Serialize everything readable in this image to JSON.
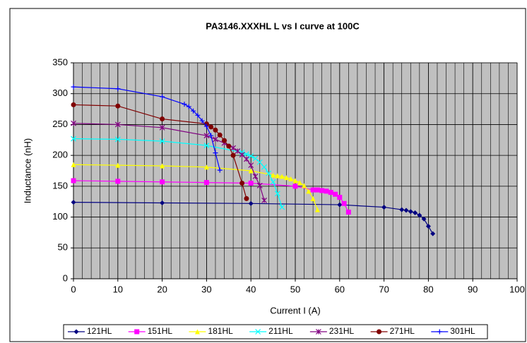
{
  "chart_data": {
    "type": "line",
    "title": "PA3146.XXXHL L vs I curve at 100C",
    "x_label": "Current I (A)",
    "y_label": "Inductance (nH)",
    "xlim": [
      0,
      100
    ],
    "xticks": [
      0,
      10,
      20,
      30,
      40,
      50,
      60,
      70,
      80,
      90,
      100
    ],
    "ylim": [
      0,
      350
    ],
    "yticks": [
      0,
      50,
      100,
      150,
      200,
      250,
      300,
      350
    ],
    "grid": true,
    "minor_grid_step": 2,
    "legend": "bottom",
    "series": [
      {
        "name": "121HL",
        "color": "#000080",
        "marker": "diamond",
        "x": [
          0,
          20,
          40,
          60,
          70,
          74,
          75,
          76,
          77,
          78,
          79,
          80,
          81
        ],
        "values": [
          124,
          123,
          122,
          120,
          116,
          112,
          111,
          109,
          107,
          103,
          97,
          85,
          73
        ]
      },
      {
        "name": "151HL",
        "color": "#ff00ff",
        "marker": "square",
        "x": [
          0,
          10,
          20,
          30,
          40,
          50,
          54,
          55,
          56,
          57,
          58,
          59,
          60,
          61,
          62
        ],
        "values": [
          159,
          158,
          157,
          156,
          155,
          150,
          144,
          144,
          143,
          142,
          140,
          137,
          132,
          122,
          108
        ]
      },
      {
        "name": "181HL",
        "color": "#ffff00",
        "marker": "triangle",
        "x": [
          0,
          10,
          20,
          30,
          40,
          45,
          46,
          47,
          48,
          49,
          50,
          51,
          52,
          53,
          54,
          55
        ],
        "values": [
          185,
          184,
          183,
          181,
          175,
          168,
          167,
          166,
          164,
          162,
          159,
          156,
          151,
          142,
          130,
          112
        ]
      },
      {
        "name": "211HL",
        "color": "#00ffff",
        "marker": "x",
        "x": [
          0,
          10,
          20,
          30,
          38,
          39,
          40,
          41,
          42,
          43,
          44,
          45,
          46,
          47
        ],
        "values": [
          227,
          226,
          223,
          216,
          205,
          202,
          199,
          195,
          189,
          181,
          171,
          157,
          138,
          116
        ]
      },
      {
        "name": "231HL",
        "color": "#800080",
        "marker": "star",
        "x": [
          0,
          10,
          20,
          30,
          32,
          34,
          36,
          37,
          38,
          39,
          40,
          41,
          42,
          43
        ],
        "values": [
          252,
          250,
          245,
          232,
          226,
          220,
          212,
          207,
          201,
          194,
          184,
          166,
          151,
          127
        ]
      },
      {
        "name": "271HL",
        "color": "#800000",
        "marker": "circle",
        "x": [
          0,
          10,
          20,
          30,
          31,
          32,
          33,
          34,
          35,
          36,
          38,
          39
        ],
        "values": [
          282,
          280,
          259,
          251,
          246,
          241,
          233,
          224,
          215,
          200,
          155,
          130
        ]
      },
      {
        "name": "301HL",
        "color": "#0000ff",
        "marker": "plus",
        "x": [
          0,
          10,
          20,
          25,
          26,
          27,
          28,
          29,
          30,
          31,
          32,
          33
        ],
        "values": [
          311,
          308,
          295,
          283,
          279,
          272,
          265,
          256,
          247,
          232,
          204,
          176
        ]
      }
    ]
  }
}
